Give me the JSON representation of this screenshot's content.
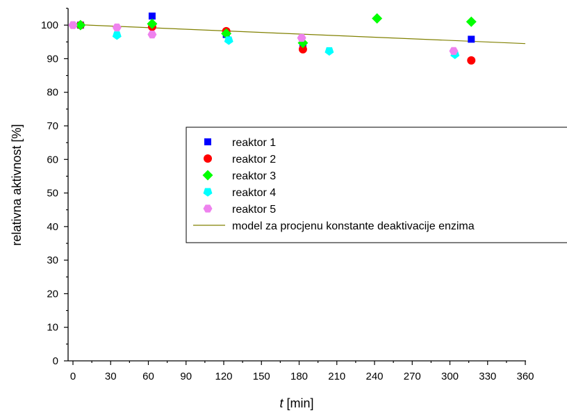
{
  "chart_data": {
    "type": "scatter",
    "title": "",
    "xlabel_italic": "t",
    "xlabel_rest": " [min]",
    "ylabel": "relativna aktivnost [%]",
    "xlim": [
      0,
      360
    ],
    "ylim": [
      0,
      105
    ],
    "xticks": [
      0,
      30,
      60,
      90,
      120,
      150,
      180,
      210,
      240,
      270,
      300,
      330,
      360
    ],
    "yticks": [
      0,
      10,
      20,
      30,
      40,
      50,
      60,
      70,
      80,
      90,
      100
    ],
    "grid": false,
    "legend_position": "center-right",
    "series": [
      {
        "name": "reaktor 1",
        "marker": "square",
        "color": "#0000ff",
        "points": [
          [
            6,
            100
          ],
          [
            63,
            102.7
          ],
          [
            122,
            97.2
          ],
          [
            183,
            93.2
          ],
          [
            317,
            95.8
          ]
        ]
      },
      {
        "name": "reaktor 2",
        "marker": "circle",
        "color": "#ff0000",
        "points": [
          [
            6,
            100
          ],
          [
            63,
            99.5
          ],
          [
            122,
            98.2
          ],
          [
            183,
            92.8
          ],
          [
            317,
            89.5
          ]
        ]
      },
      {
        "name": "reaktor 3",
        "marker": "diamond",
        "color": "#00ff00",
        "points": [
          [
            6,
            100
          ],
          [
            63,
            100.4
          ],
          [
            122,
            97.5
          ],
          [
            183,
            94.7
          ],
          [
            242,
            102
          ],
          [
            317,
            101
          ]
        ]
      },
      {
        "name": "reaktor 4",
        "marker": "pentagon",
        "color": "#00ffff",
        "points": [
          [
            35,
            97
          ],
          [
            124,
            95.5
          ],
          [
            204,
            92.3
          ],
          [
            304,
            91.3
          ]
        ]
      },
      {
        "name": "reaktor 5",
        "marker": "hexagon",
        "color": "#ee82ee",
        "points": [
          [
            0,
            100
          ],
          [
            35,
            99.3
          ],
          [
            63,
            97.2
          ],
          [
            182,
            96.2
          ],
          [
            303,
            92.3
          ]
        ]
      }
    ],
    "model_line": {
      "name": "model za procjenu konstante deaktivacije enzima",
      "color": "#808000",
      "points": [
        [
          0,
          100.2
        ],
        [
          360,
          94.5
        ]
      ]
    }
  }
}
